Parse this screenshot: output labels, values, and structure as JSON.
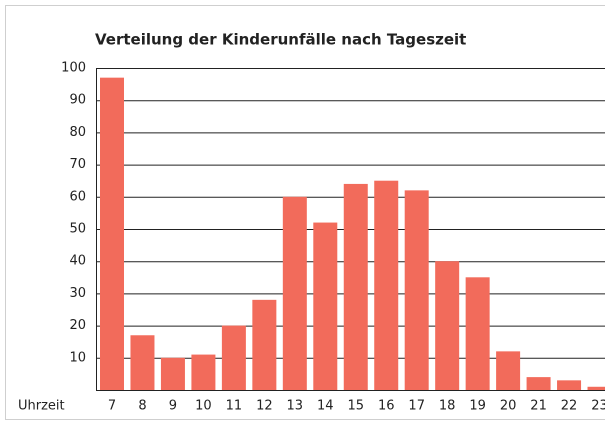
{
  "chart_data": {
    "type": "bar",
    "title": "Verteilung der Kinderunfälle nach Tageszeit",
    "x_label": "Uhrzeit",
    "categories": [
      "7",
      "8",
      "9",
      "10",
      "11",
      "12",
      "13",
      "14",
      "15",
      "16",
      "17",
      "18",
      "19",
      "20",
      "21",
      "22",
      "23"
    ],
    "values": [
      97,
      17,
      10,
      11,
      20,
      28,
      60,
      52,
      64,
      65,
      62,
      40,
      35,
      12,
      4,
      3,
      1
    ],
    "color": "#f26b5b",
    "ylim": [
      0,
      100
    ],
    "yticks": [
      10,
      20,
      30,
      40,
      50,
      60,
      70,
      80,
      90,
      100
    ],
    "grid": true
  }
}
